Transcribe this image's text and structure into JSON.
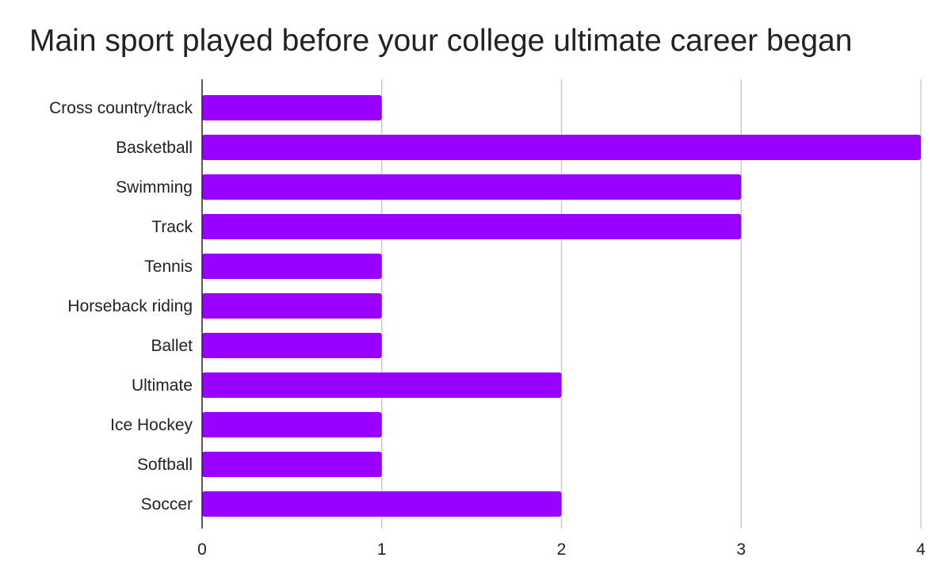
{
  "chart_data": {
    "type": "bar",
    "orientation": "horizontal",
    "title": "Main sport played before your college ultimate career began",
    "xlabel": "",
    "ylabel": "",
    "categories": [
      "Cross country/track",
      "Basketball",
      "Swimming",
      "Track",
      "Tennis",
      "Horseback riding",
      "Ballet",
      "Ultimate",
      "Ice Hockey",
      "Softball",
      "Soccer"
    ],
    "values": [
      1,
      4,
      3,
      3,
      1,
      1,
      1,
      2,
      1,
      1,
      2
    ],
    "xlim": [
      0,
      4
    ],
    "xticks": [
      "0",
      "1",
      "2",
      "3",
      "4"
    ],
    "grid": true,
    "legend": "none",
    "bar_color": "#9900ff",
    "gridline_color": "#cccccc",
    "axis_color": "#222222"
  }
}
